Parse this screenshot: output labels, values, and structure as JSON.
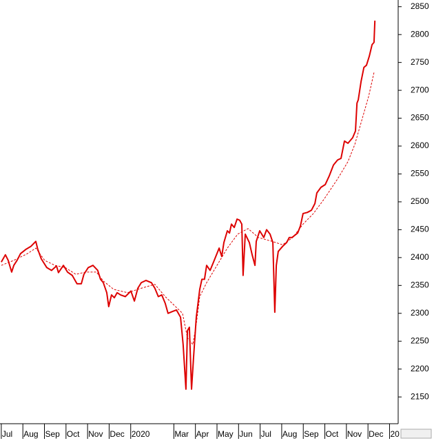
{
  "chart_data": {
    "type": "line",
    "xlim": [
      -0.06,
      18.4
    ],
    "ylim": [
      2102,
      2862
    ],
    "yticks": [
      2150,
      2200,
      2250,
      2300,
      2350,
      2400,
      2450,
      2500,
      2550,
      2600,
      2650,
      2700,
      2750,
      2800,
      2850
    ],
    "xticks": [
      {
        "value": 0,
        "label": "Jul"
      },
      {
        "value": 1,
        "label": "Aug"
      },
      {
        "value": 2,
        "label": "Sep"
      },
      {
        "value": 3,
        "label": "Oct"
      },
      {
        "value": 4,
        "label": "Nov"
      },
      {
        "value": 5,
        "label": "Dec"
      },
      {
        "value": 6,
        "label": "2020"
      },
      {
        "value": 8,
        "label": "Mar"
      },
      {
        "value": 9,
        "label": "Apr"
      },
      {
        "value": 10,
        "label": "May"
      },
      {
        "value": 11,
        "label": "Jun"
      },
      {
        "value": 12,
        "label": "Jul"
      },
      {
        "value": 13,
        "label": "Aug"
      },
      {
        "value": 14,
        "label": "Sep"
      },
      {
        "value": 15,
        "label": "Oct"
      },
      {
        "value": 16,
        "label": "Nov"
      },
      {
        "value": 17,
        "label": "Dec"
      },
      {
        "value": 18,
        "label": "20"
      }
    ],
    "series": [
      {
        "color": "#dd0000",
        "style": "solid",
        "x": [
          0,
          0.19,
          0.32,
          0.48,
          0.58,
          0.73,
          0.89,
          1.15,
          1.37,
          1.6,
          1.69,
          1.85,
          2.11,
          2.33,
          2.56,
          2.65,
          2.88,
          3.07,
          3.29,
          3.51,
          3.71,
          3.83,
          4.03,
          4.25,
          4.47,
          4.6,
          4.73,
          4.89,
          4.98,
          5.11,
          5.24,
          5.37,
          5.53,
          5.75,
          6.01,
          6.17,
          6.33,
          6.49,
          6.71,
          6.96,
          7.12,
          7.28,
          7.44,
          7.6,
          7.73,
          7.92,
          8.12,
          8.31,
          8.43,
          8.56,
          8.63,
          8.72,
          8.82,
          8.91,
          9.04,
          9.2,
          9.3,
          9.42,
          9.52,
          9.68,
          9.84,
          10.1,
          10.22,
          10.32,
          10.48,
          10.58,
          10.67,
          10.8,
          10.93,
          11.05,
          11.15,
          11.21,
          11.31,
          11.5,
          11.63,
          11.76,
          11.82,
          11.98,
          12.17,
          12.3,
          12.46,
          12.59,
          12.68,
          12.75,
          12.84,
          13.04,
          13.23,
          13.35,
          13.48,
          13.74,
          13.87,
          13.99,
          14.19,
          14.38,
          14.54,
          14.63,
          14.82,
          15.02,
          15.21,
          15.4,
          15.59,
          15.75,
          15.91,
          16.07,
          16.29,
          16.42,
          16.49,
          16.55,
          16.68,
          16.81,
          16.93,
          17.06,
          17.19,
          17.28,
          17.32
        ],
        "values": [
          2392,
          2405,
          2395,
          2374,
          2386,
          2395,
          2407,
          2415,
          2420,
          2429,
          2415,
          2398,
          2382,
          2377,
          2385,
          2373,
          2386,
          2374,
          2368,
          2353,
          2353,
          2370,
          2382,
          2386,
          2377,
          2361,
          2355,
          2337,
          2312,
          2333,
          2328,
          2337,
          2333,
          2330,
          2340,
          2322,
          2345,
          2355,
          2359,
          2355,
          2345,
          2330,
          2333,
          2318,
          2300,
          2303,
          2306,
          2293,
          2244,
          2164,
          2269,
          2275,
          2164,
          2219,
          2293,
          2343,
          2361,
          2361,
          2386,
          2377,
          2392,
          2417,
          2402,
          2427,
          2448,
          2444,
          2460,
          2454,
          2469,
          2467,
          2460,
          2368,
          2442,
          2427,
          2405,
          2386,
          2429,
          2448,
          2436,
          2450,
          2442,
          2427,
          2302,
          2386,
          2411,
          2420,
          2427,
          2436,
          2436,
          2444,
          2457,
          2479,
          2481,
          2485,
          2497,
          2516,
          2526,
          2531,
          2547,
          2566,
          2575,
          2578,
          2609,
          2605,
          2615,
          2627,
          2677,
          2683,
          2716,
          2741,
          2745,
          2761,
          2782,
          2786,
          2825
        ]
      },
      {
        "color": "#dd0000",
        "style": "dashed",
        "x": [
          0,
          0.58,
          1.21,
          1.6,
          2.01,
          2.49,
          2.97,
          3.45,
          3.93,
          4.41,
          4.73,
          5.21,
          5.85,
          6.49,
          7.12,
          7.6,
          8.08,
          8.4,
          8.63,
          8.88,
          9.04,
          9.2,
          9.52,
          10.0,
          10.48,
          10.96,
          11.44,
          11.92,
          12.56,
          13.04,
          13.51,
          13.99,
          14.47,
          14.95,
          15.59,
          16.07,
          16.39,
          16.71,
          17.03,
          17.28
        ],
        "values": [
          2386,
          2395,
          2407,
          2417,
          2395,
          2386,
          2382,
          2370,
          2374,
          2374,
          2358,
          2343,
          2337,
          2345,
          2352,
          2330,
          2312,
          2300,
          2256,
          2244,
          2281,
          2330,
          2355,
          2386,
          2417,
          2442,
          2452,
          2436,
          2429,
          2423,
          2436,
          2460,
          2479,
          2504,
          2541,
          2572,
          2603,
          2646,
          2689,
          2732
        ]
      }
    ]
  }
}
